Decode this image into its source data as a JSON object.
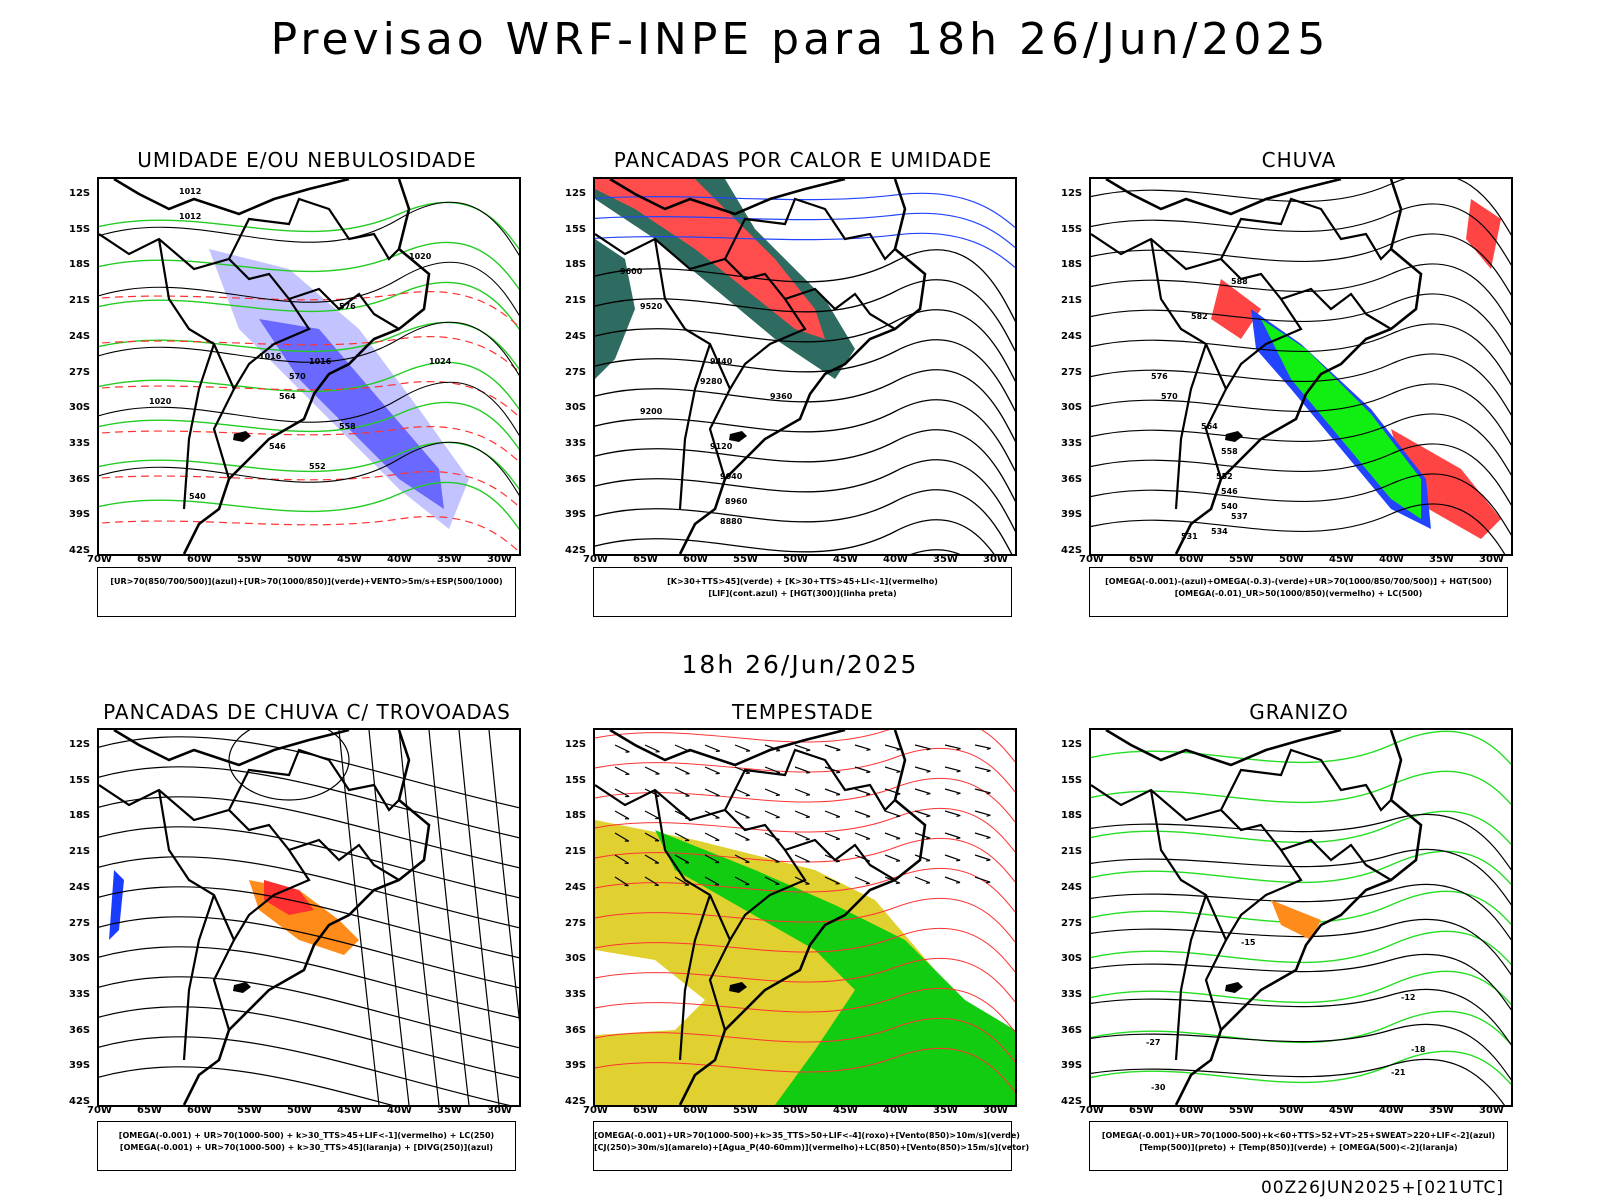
{
  "header": {
    "title": "Previsao WRF-INPE  para 18h 26/Jun/2025"
  },
  "middle": {
    "subtitle": "18h 26/Jun/2025"
  },
  "footer": {
    "stamp": "00Z26JUN2025+[021UTC]"
  },
  "axes": {
    "lat_labels": [
      "12S",
      "15S",
      "18S",
      "21S",
      "24S",
      "27S",
      "30S",
      "33S",
      "36S",
      "39S",
      "42S"
    ],
    "lon_labels": [
      "70W",
      "65W",
      "60W",
      "55W",
      "50W",
      "45W",
      "40W",
      "35W",
      "30W"
    ]
  },
  "panels": [
    {
      "title": "UMIDADE E/OU NEBULOSIDADE",
      "legend": [
        "[UR>70(850/700/500)](azul)+[UR>70(1000/850)](verde)+VENTO>5m/s+ESP(500/1000)"
      ],
      "contour_labels": [
        "1012",
        "1012",
        "1016",
        "1016",
        "1020",
        "1020",
        "1024",
        "576",
        "570",
        "564",
        "558",
        "552",
        "546",
        "540"
      ],
      "colors": {
        "blue": "#5f5fff",
        "lightblue": "#b4b4ff",
        "green": "#22cc22",
        "red": "#ff3333"
      }
    },
    {
      "title": "PANCADAS POR CALOR E UMIDADE",
      "legend": [
        "[K>30+TTS>45](verde) + [K>30+TTS>45+LI<-1](vermelho)",
        "[LIF](cont.azul) + [HGT(300)](linha preta)"
      ],
      "contour_labels": [
        "9600",
        "9520",
        "9440",
        "9360",
        "9280",
        "9200",
        "9120",
        "9040",
        "8960",
        "8880"
      ],
      "colors": {
        "teal": "#2e6b60",
        "red": "#ff4d4d",
        "blue": "#2244ff"
      }
    },
    {
      "title": "CHUVA",
      "legend": [
        "[OMEGA(-0.001)-(azul)+OMEGA(-0.3)-(verde)+UR>70(1000/850/700/500)] + HGT(500)",
        "[OMEGA(-0.01)_UR>50(1000/850)(vermelho) + LC(500)"
      ],
      "contour_labels": [
        "588",
        "582",
        "576",
        "570",
        "564",
        "558",
        "552",
        "546",
        "540",
        "537",
        "534",
        "531"
      ],
      "colors": {
        "green": "#11ee11",
        "blue": "#2244ff",
        "red": "#ff4444"
      }
    },
    {
      "title": "PANCADAS DE CHUVA C/ TROVOADAS",
      "legend": [
        "[OMEGA(-0.001) + UR>70(1000-500) + k>30_TTS>45+LIF<-1](vermelho) + LC(250)",
        "[OMEGA(-0.001) + UR>70(1000-500) + k>30_TTS>45](laranja) + [DIVG(250)](azul)"
      ],
      "colors": {
        "orange": "#ff8c1a",
        "red": "#ff3030",
        "blue": "#1a3cff"
      }
    },
    {
      "title": "TEMPESTADE",
      "legend": [
        "[OMEGA(-0.001)+UR>70(1000-500)+k>35_TTS>50+LIF<-4](roxo)+[Vento(850)>10m/s](verde)",
        "[CJ(250)>30m/s](amarelo)+[Agua_P(40-60mm)](vermelho)+LC(850)+[Vento(850)>15m/s](vetor)"
      ],
      "colors": {
        "yellow": "#e0d030",
        "green": "#11cc11",
        "red": "#ff3333"
      }
    },
    {
      "title": "GRANIZO",
      "legend": [
        "[OMEGA(-0.001)+UR>70(1000-500)+k<60+TTS>52+VT>25+SWEAT>220+LIF<-2](azul)",
        "[Temp(500)](preto) + [Temp(850)](verde) + [OMEGA(500)<-2](laranja)"
      ],
      "contour_labels": [
        "-12",
        "-15",
        "-18",
        "-21",
        "-27",
        "-30"
      ],
      "colors": {
        "green": "#22dd22",
        "orange": "#ff8c1a",
        "black": "#000000"
      }
    }
  ]
}
